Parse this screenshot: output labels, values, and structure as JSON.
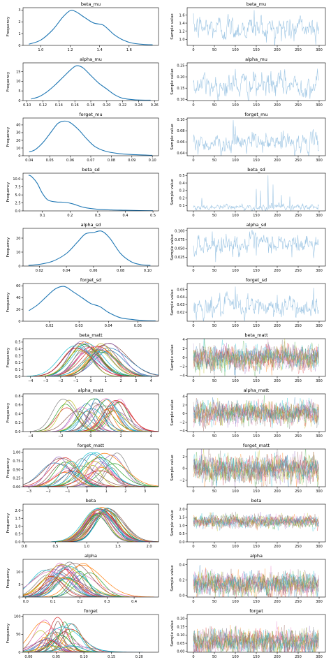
{
  "colors": {
    "kde": "#1f77b4",
    "trace": "#9ec6e4",
    "palette": [
      "#1f77b4",
      "#ff7f0e",
      "#2ca02c",
      "#d62728",
      "#9467bd",
      "#8c564b",
      "#e377c2",
      "#7f7f7f",
      "#bcbd22",
      "#17becf"
    ]
  },
  "left_ylabel": "Frequency",
  "right_ylabel": "Sample value",
  "chart_data": [
    {
      "type": "line",
      "title": "beta_mu",
      "multi": false,
      "kde": {
        "xlim": [
          0.88,
          1.8
        ],
        "ylim": [
          0,
          3.2
        ],
        "xticks": [
          1.0,
          1.2,
          1.4,
          1.6
        ],
        "yticks": [
          0,
          1,
          2,
          3
        ],
        "x": [
          0.92,
          1.0,
          1.08,
          1.15,
          1.2,
          1.24,
          1.3,
          1.36,
          1.42,
          1.46,
          1.5,
          1.56,
          1.62,
          1.7,
          1.76
        ],
        "y": [
          0.1,
          0.45,
          1.3,
          2.4,
          2.95,
          2.85,
          2.35,
          1.9,
          1.75,
          1.35,
          0.9,
          0.45,
          0.2,
          0.08,
          0.05
        ]
      },
      "trace": {
        "xlim": [
          -15,
          315
        ],
        "ylim": [
          0.85,
          1.78
        ],
        "xticks": [
          0,
          50,
          100,
          150,
          200,
          250,
          300
        ],
        "yticks": [
          1.0,
          1.2,
          1.4,
          1.6
        ],
        "center": 1.28,
        "spread": 0.13,
        "spikes": [
          [
            100,
            1.05
          ],
          [
            145,
            1.72
          ],
          [
            175,
            1.1
          ],
          [
            210,
            0.95
          ],
          [
            240,
            0.95
          ]
        ]
      }
    },
    {
      "type": "line",
      "title": "alpha_mu",
      "multi": false,
      "kde": {
        "xlim": [
          0.095,
          0.265
        ],
        "ylim": [
          0,
          19.5
        ],
        "xticks": [
          0.1,
          0.12,
          0.14,
          0.16,
          0.18,
          0.2,
          0.22,
          0.24,
          0.26
        ],
        "yticks": [
          0,
          5,
          10,
          15
        ],
        "x": [
          0.105,
          0.115,
          0.125,
          0.135,
          0.145,
          0.155,
          0.162,
          0.17,
          0.18,
          0.19,
          0.2,
          0.21,
          0.22,
          0.235,
          0.255
        ],
        "y": [
          0.8,
          2,
          4.5,
          8,
          12,
          16,
          18,
          17,
          13,
          9,
          6,
          3,
          1.2,
          0.4,
          0.2
        ]
      },
      "trace": {
        "xlim": [
          -15,
          315
        ],
        "ylim": [
          0.095,
          0.262
        ],
        "xticks": [
          0,
          50,
          100,
          150,
          200,
          250,
          300
        ],
        "yticks": [
          0.1,
          0.15,
          0.2,
          0.25
        ],
        "center": 0.163,
        "spread": 0.022,
        "spikes": [
          [
            100,
            0.235
          ],
          [
            185,
            0.225
          ],
          [
            150,
            0.115
          ]
        ]
      }
    },
    {
      "type": "line",
      "title": "forget_mu",
      "multi": false,
      "kde": {
        "xlim": [
          0.037,
          0.103
        ],
        "ylim": [
          0,
          49
        ],
        "xticks": [
          0.04,
          0.05,
          0.06,
          0.07,
          0.08,
          0.09,
          0.1
        ],
        "yticks": [
          0,
          10,
          20,
          30,
          40
        ],
        "x": [
          0.04,
          0.043,
          0.047,
          0.051,
          0.054,
          0.057,
          0.06,
          0.064,
          0.068,
          0.072,
          0.077,
          0.083,
          0.09,
          0.1
        ],
        "y": [
          5,
          8,
          18,
          32,
          42,
          45,
          43,
          34,
          22,
          12,
          6,
          3,
          1.5,
          0.5
        ]
      },
      "trace": {
        "xlim": [
          -15,
          315
        ],
        "ylim": [
          0.035,
          0.103
        ],
        "xticks": [
          0,
          50,
          100,
          150,
          200,
          250,
          300
        ],
        "yticks": [
          0.04,
          0.06,
          0.08,
          0.1
        ],
        "center": 0.058,
        "spread": 0.007,
        "spikes": [
          [
            95,
            0.099
          ],
          [
            100,
            0.088
          ],
          [
            140,
            0.078
          ],
          [
            210,
            0.078
          ]
        ]
      }
    },
    {
      "type": "line",
      "title": "beta_sd",
      "multi": false,
      "kde": {
        "xlim": [
          0.03,
          0.52
        ],
        "ylim": [
          0,
          11.8
        ],
        "xticks": [
          0.1,
          0.2,
          0.3,
          0.4,
          0.5
        ],
        "yticks": [
          0.0,
          2.5,
          5.0,
          7.5,
          10.0
        ],
        "x": [
          0.05,
          0.06,
          0.08,
          0.1,
          0.12,
          0.15,
          0.18,
          0.21,
          0.25,
          0.3,
          0.35,
          0.4,
          0.45,
          0.5
        ],
        "y": [
          11.2,
          10.8,
          8.8,
          5.5,
          3.4,
          2.8,
          2.7,
          2.2,
          1.1,
          0.5,
          0.3,
          0.2,
          0.1,
          0.05
        ]
      },
      "trace": {
        "xlim": [
          -15,
          315
        ],
        "ylim": [
          0.03,
          0.53
        ],
        "xticks": [
          0,
          50,
          100,
          150,
          200,
          250,
          300
        ],
        "yticks": [
          0.1,
          0.2,
          0.3,
          0.4,
          0.5
        ],
        "center": 0.08,
        "spread": 0.018,
        "spikes": [
          [
            20,
            0.2
          ],
          [
            150,
            0.32
          ],
          [
            160,
            0.3
          ],
          [
            178,
            0.5
          ],
          [
            190,
            0.38
          ],
          [
            210,
            0.24
          ],
          [
            230,
            0.22
          ]
        ]
      }
    },
    {
      "type": "line",
      "title": "alpha_sd",
      "multi": false,
      "kde": {
        "xlim": [
          0.008,
          0.108
        ],
        "ylim": [
          0,
          27
        ],
        "xticks": [
          0.02,
          0.04,
          0.06,
          0.08,
          0.1
        ],
        "yticks": [
          0,
          10,
          20
        ],
        "x": [
          0.012,
          0.02,
          0.03,
          0.04,
          0.048,
          0.054,
          0.06,
          0.066,
          0.072,
          0.08,
          0.088,
          0.095,
          0.102
        ],
        "y": [
          0.5,
          1.2,
          3.5,
          9,
          17,
          23,
          24,
          25,
          20,
          9,
          3,
          1,
          0.5
        ]
      },
      "trace": {
        "xlim": [
          -15,
          315
        ],
        "ylim": [
          0.0,
          0.107
        ],
        "xticks": [
          0,
          50,
          100,
          150,
          200,
          250,
          300
        ],
        "yticks": [
          0.025,
          0.05,
          0.075,
          0.1
        ],
        "center": 0.062,
        "spread": 0.012,
        "spikes": [
          [
            45,
            0.098
          ],
          [
            150,
            0.03
          ],
          [
            235,
            0.025
          ],
          [
            300,
            0.03
          ]
        ]
      }
    },
    {
      "type": "line",
      "title": "forget_sd",
      "multi": false,
      "kde": {
        "xlim": [
          0.011,
          0.057
        ],
        "ylim": [
          0,
          64
        ],
        "xticks": [
          0.02,
          0.03,
          0.04,
          0.05
        ],
        "yticks": [
          0,
          20,
          40,
          60
        ],
        "x": [
          0.013,
          0.016,
          0.019,
          0.022,
          0.025,
          0.028,
          0.031,
          0.034,
          0.037,
          0.04,
          0.044,
          0.048,
          0.052,
          0.056
        ],
        "y": [
          18,
          28,
          42,
          55,
          59,
          50,
          40,
          30,
          25,
          15,
          6,
          3,
          1,
          0.5
        ]
      },
      "trace": {
        "xlim": [
          -15,
          315
        ],
        "ylim": [
          0.008,
          0.058
        ],
        "xticks": [
          0,
          50,
          100,
          150,
          200,
          250,
          300
        ],
        "yticks": [
          0.02,
          0.03,
          0.04,
          0.05
        ],
        "center": 0.027,
        "spread": 0.006,
        "spikes": [
          [
            100,
            0.054
          ],
          [
            130,
            0.045
          ],
          [
            200,
            0.043
          ]
        ]
      }
    },
    {
      "type": "line",
      "title": "beta_matt",
      "multi": true,
      "kde": {
        "xlim": [
          -4.5,
          4.5
        ],
        "ylim": [
          0,
          0.55
        ],
        "xticks": [
          -4,
          -3,
          -2,
          -1,
          0,
          1,
          2,
          3,
          4
        ],
        "yticks": [
          0.0,
          0.1,
          0.2,
          0.3,
          0.4,
          0.5
        ],
        "n_curves": 30,
        "mu_range": [
          -1.2,
          1.4
        ],
        "sigma_range": [
          0.65,
          1.1
        ],
        "peak_range": [
          0.35,
          0.52
        ]
      },
      "trace": {
        "xlim": [
          -15,
          315
        ],
        "ylim": [
          -4.2,
          4.2
        ],
        "xticks": [
          0,
          50,
          100,
          150,
          200,
          250,
          300
        ],
        "yticks": [
          -4,
          -2,
          0,
          2,
          4
        ],
        "n_series": 10,
        "center": 0.0,
        "spread": 1.1
      }
    },
    {
      "type": "line",
      "title": "alpha_matt",
      "multi": true,
      "kde": {
        "xlim": [
          -4.5,
          4.5
        ],
        "ylim": [
          0,
          0.85
        ],
        "xticks": [
          -4,
          -2,
          0,
          2,
          4
        ],
        "yticks": [
          0.0,
          0.2,
          0.4,
          0.6,
          0.8
        ],
        "n_curves": 30,
        "mu_range": [
          -2.0,
          2.0
        ],
        "sigma_range": [
          0.45,
          0.85
        ],
        "peak_range": [
          0.45,
          0.75
        ]
      },
      "trace": {
        "xlim": [
          -15,
          315
        ],
        "ylim": [
          -4.2,
          4.6
        ],
        "xticks": [
          0,
          50,
          100,
          150,
          200,
          250,
          300
        ],
        "yticks": [
          -4,
          -2,
          0,
          2,
          4
        ],
        "n_series": 10,
        "center": 0.1,
        "spread": 1.0
      }
    },
    {
      "type": "line",
      "title": "forget_matt",
      "multi": true,
      "kde": {
        "xlim": [
          -3.3,
          3.7
        ],
        "ylim": [
          0,
          1.1
        ],
        "xticks": [
          -3,
          -2,
          -1,
          0,
          1,
          2,
          3
        ],
        "yticks": [
          0.0,
          0.25,
          0.5,
          0.75,
          1.0
        ],
        "n_curves": 30,
        "mu_range": [
          -1.7,
          1.6
        ],
        "sigma_range": [
          0.35,
          0.9
        ],
        "peak_range": [
          0.4,
          1.0
        ]
      },
      "trace": {
        "xlim": [
          -15,
          315
        ],
        "ylim": [
          -3.1,
          3.3
        ],
        "xticks": [
          0,
          50,
          100,
          150,
          200,
          250,
          300
        ],
        "yticks": [
          -2,
          0,
          2
        ],
        "n_series": 10,
        "center": 0.0,
        "spread": 0.9
      }
    },
    {
      "type": "line",
      "title": "beta",
      "multi": true,
      "kde": {
        "xlim": [
          -0.02,
          2.15
        ],
        "ylim": [
          0,
          2.4
        ],
        "xticks": [
          0.0,
          0.5,
          1.0,
          1.5,
          2.0
        ],
        "yticks": [
          0.0,
          0.5,
          1.0,
          1.5,
          2.0
        ],
        "n_curves": 30,
        "mu_range": [
          1.15,
          1.35
        ],
        "sigma_range": [
          0.17,
          0.24
        ],
        "peak_range": [
          1.7,
          2.2
        ]
      },
      "trace": {
        "xlim": [
          -15,
          315
        ],
        "ylim": [
          0.0,
          2.3
        ],
        "xticks": [
          0,
          50,
          100,
          150,
          200,
          250,
          300
        ],
        "yticks": [
          0.0,
          0.5,
          1.0,
          1.5,
          2.0
        ],
        "n_series": 10,
        "center": 1.25,
        "spread": 0.15
      }
    },
    {
      "type": "line",
      "title": "alpha",
      "multi": true,
      "kde": {
        "xlim": [
          -0.01,
          0.49
        ],
        "ylim": [
          0,
          15
        ],
        "xticks": [
          0.0,
          0.1,
          0.2,
          0.3,
          0.4
        ],
        "yticks": [
          0,
          5,
          10
        ],
        "n_curves": 30,
        "mu_range": [
          0.07,
          0.24
        ],
        "sigma_range": [
          0.03,
          0.07
        ],
        "peak_range": [
          7,
          14
        ]
      },
      "trace": {
        "xlim": [
          -15,
          315
        ],
        "ylim": [
          -0.02,
          0.47
        ],
        "xticks": [
          0,
          50,
          100,
          150,
          200,
          250,
          300
        ],
        "yticks": [
          0.0,
          0.2,
          0.4
        ],
        "n_series": 10,
        "center": 0.15,
        "spread": 0.06
      }
    },
    {
      "type": "line",
      "title": "forget",
      "multi": true,
      "kde": {
        "xlim": [
          -0.01,
          0.235
        ],
        "ylim": [
          0,
          105
        ],
        "xticks": [
          0.0,
          0.05,
          0.1,
          0.15,
          0.2
        ],
        "yticks": [
          0,
          50,
          100
        ],
        "n_curves": 30,
        "mu_range": [
          0.02,
          0.085
        ],
        "sigma_range": [
          0.006,
          0.03
        ],
        "peak_range": [
          15,
          100
        ]
      },
      "trace": {
        "xlim": [
          -15,
          315
        ],
        "ylim": [
          -0.005,
          0.225
        ],
        "xticks": [
          0,
          50,
          100,
          150,
          200,
          250,
          300
        ],
        "yticks": [
          0.0,
          0.05,
          0.1,
          0.15,
          0.2
        ],
        "n_series": 10,
        "center": 0.06,
        "spread": 0.03
      }
    }
  ]
}
